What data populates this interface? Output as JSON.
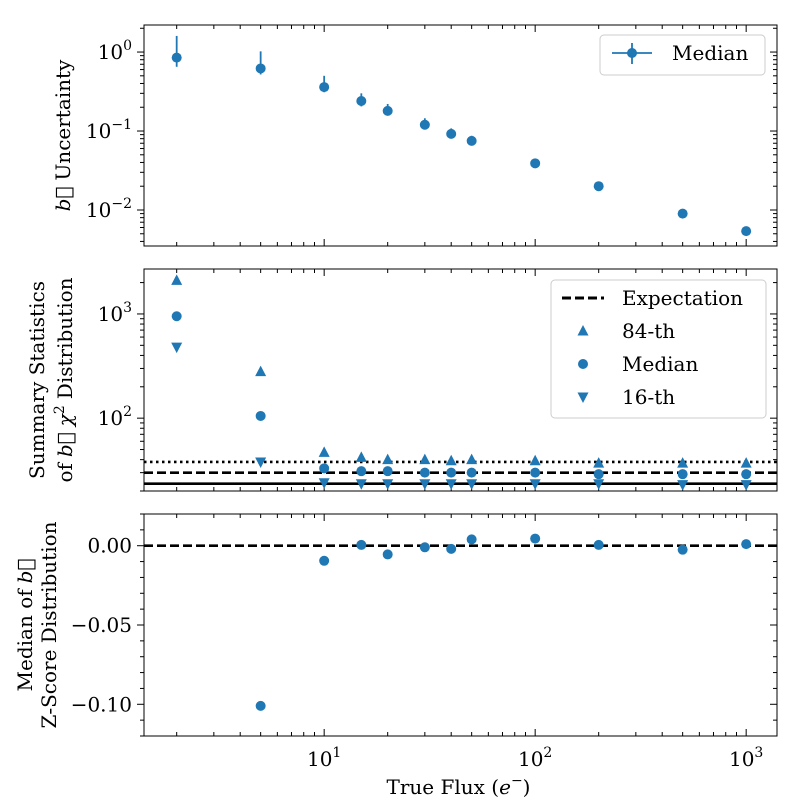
{
  "chart_data": [
    {
      "type": "scatter",
      "panel": "top",
      "x_scale": "log",
      "y_scale": "log",
      "xlim": [
        1.4,
        1400
      ],
      "ylim": [
        0.0035,
        2.2
      ],
      "ylabel_symbol": "b⃗",
      "ylabel": "Uncertainty",
      "y_ticks": [
        {
          "value": 0.01,
          "base": "10",
          "exp": "−2"
        },
        {
          "value": 0.1,
          "base": "10",
          "exp": "−1"
        },
        {
          "value": 1,
          "base": "10",
          "exp": "0"
        }
      ],
      "legend": {
        "label": "Median",
        "placement": "top-right"
      },
      "series": [
        {
          "name": "Median",
          "color": "#1f77b4",
          "x": [
            2,
            5,
            10,
            15,
            20,
            30,
            40,
            50,
            100,
            200,
            500,
            1000
          ],
          "y": [
            0.85,
            0.62,
            0.36,
            0.24,
            0.18,
            0.12,
            0.092,
            0.075,
            0.039,
            0.02,
            0.009,
            0.0054
          ],
          "err_low": [
            0.65,
            0.52,
            0.31,
            0.205,
            0.165,
            0.105,
            0.081,
            0.066,
            0.036,
            0.0185,
            0.0083,
            0.0051
          ],
          "err_high": [
            1.6,
            1.02,
            0.5,
            0.3,
            0.22,
            0.145,
            0.108,
            0.087,
            0.042,
            0.0215,
            0.0097,
            0.0057
          ]
        }
      ]
    },
    {
      "type": "scatter",
      "panel": "middle",
      "x_scale": "log",
      "y_scale": "log",
      "xlim": [
        1.4,
        1400
      ],
      "ylim": [
        20,
        2700
      ],
      "ylabel_line1": "Summary Statistics",
      "ylabel_line2_pre": "of",
      "ylabel_symbol": "b⃗",
      "ylabel_chi": "χ",
      "ylabel_sup": "2",
      "ylabel_line2_post": "Distribution",
      "y_ticks": [
        {
          "value": 100,
          "base": "10",
          "exp": "2"
        },
        {
          "value": 1000,
          "base": "10",
          "exp": "3"
        }
      ],
      "legend": {
        "placement": "top-right",
        "entries": [
          "Expectation",
          "84-th",
          "Median",
          "16-th"
        ]
      },
      "reference_lines": [
        {
          "name": "84-th expectation",
          "y": 38,
          "style": "dotted"
        },
        {
          "name": "Expectation",
          "y": 30,
          "style": "dashed"
        },
        {
          "name": "16-th expectation",
          "y": 23.5,
          "style": "solid"
        }
      ],
      "series": [
        {
          "name": "84-th",
          "marker": "triangle-up",
          "color": "#1f77b4",
          "x": [
            2,
            5,
            10,
            15,
            20,
            30,
            40,
            50,
            100,
            200,
            500,
            1000
          ],
          "y": [
            2100,
            280,
            47,
            42,
            40,
            40,
            39,
            40,
            39,
            37,
            37,
            37
          ]
        },
        {
          "name": "Median",
          "marker": "circle",
          "color": "#1f77b4",
          "x": [
            2,
            5,
            10,
            15,
            20,
            30,
            40,
            50,
            100,
            200,
            500,
            1000
          ],
          "y": [
            950,
            105,
            33,
            31,
            31,
            30,
            30,
            30,
            30,
            29,
            29,
            29
          ]
        },
        {
          "name": "16-th",
          "marker": "triangle-down",
          "color": "#1f77b4",
          "x": [
            2,
            5,
            10,
            15,
            20,
            30,
            40,
            50,
            100,
            200,
            500,
            1000
          ],
          "y": [
            480,
            38,
            24,
            23.5,
            23.5,
            23.5,
            23.5,
            23.5,
            23.5,
            23.5,
            23,
            23
          ]
        }
      ]
    },
    {
      "type": "scatter",
      "panel": "bottom",
      "x_scale": "log",
      "y_scale": "linear",
      "xlim": [
        1.4,
        1400
      ],
      "ylim": [
        -0.12,
        0.02
      ],
      "ylabel_line1_pre": "Median of",
      "ylabel_symbol": "b⃗",
      "ylabel_line2": "Z-Score Distribution",
      "xlabel_pre": "True Flux (",
      "xlabel_e": "e",
      "xlabel_sup": "−",
      "xlabel_post": ")",
      "y_ticks": [
        {
          "value": 0.0,
          "label": "0.00"
        },
        {
          "value": -0.05,
          "label": "−0.05"
        },
        {
          "value": -0.1,
          "label": "−0.10"
        }
      ],
      "x_ticks": [
        {
          "value": 10,
          "base": "10",
          "exp": "1"
        },
        {
          "value": 100,
          "base": "10",
          "exp": "2"
        },
        {
          "value": 1000,
          "base": "10",
          "exp": "3"
        }
      ],
      "reference_lines": [
        {
          "name": "zero",
          "y": 0.0,
          "style": "dashed"
        }
      ],
      "series": [
        {
          "name": "Median",
          "color": "#1f77b4",
          "x": [
            5,
            10,
            15,
            20,
            30,
            40,
            50,
            100,
            200,
            500,
            1000
          ],
          "y": [
            -0.101,
            -0.0095,
            0.0005,
            -0.0055,
            -0.001,
            -0.002,
            0.004,
            0.0045,
            0.0005,
            -0.0025,
            0.001
          ]
        }
      ]
    }
  ]
}
